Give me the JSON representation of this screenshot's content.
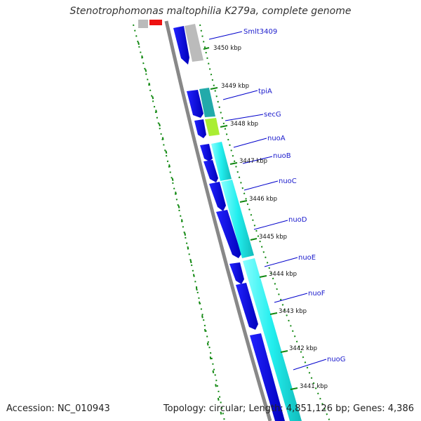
{
  "title": "Stenotrophomonas maltophilia K279a, complete genome",
  "footer": {
    "accession": "Accession: NC_010943",
    "summary": "Topology: circular; Length: 4,851,126 bp; Genes: 4,386"
  },
  "colors": {
    "gene_forward": "#0000ee",
    "gene_gray": "#bbbbbb",
    "gene_red": "#ee1111",
    "cds_cyan": "#22eeee",
    "cds_teal": "#22aaaa",
    "cds_lime": "#aaee33",
    "backbone": "#888888",
    "gc_dots": "#118811",
    "label_line": "#0000cc"
  },
  "genes": [
    {
      "name": "Smlt3409"
    },
    {
      "name": "tpiA"
    },
    {
      "name": "secG"
    },
    {
      "name": "nuoA"
    },
    {
      "name": "nuoB"
    },
    {
      "name": "nuoC"
    },
    {
      "name": "nuoD"
    },
    {
      "name": "nuoE"
    },
    {
      "name": "nuoF"
    },
    {
      "name": "nuoG"
    }
  ],
  "ticks": [
    {
      "label": "3450 kbp"
    },
    {
      "label": "3449 kbp"
    },
    {
      "label": "3448 kbp"
    },
    {
      "label": "3447 kbp"
    },
    {
      "label": "3446 kbp"
    },
    {
      "label": "3445 kbp"
    },
    {
      "label": "3444 kbp"
    },
    {
      "label": "3443 kbp"
    },
    {
      "label": "3442 kbp"
    },
    {
      "label": "3441 kbp"
    }
  ]
}
